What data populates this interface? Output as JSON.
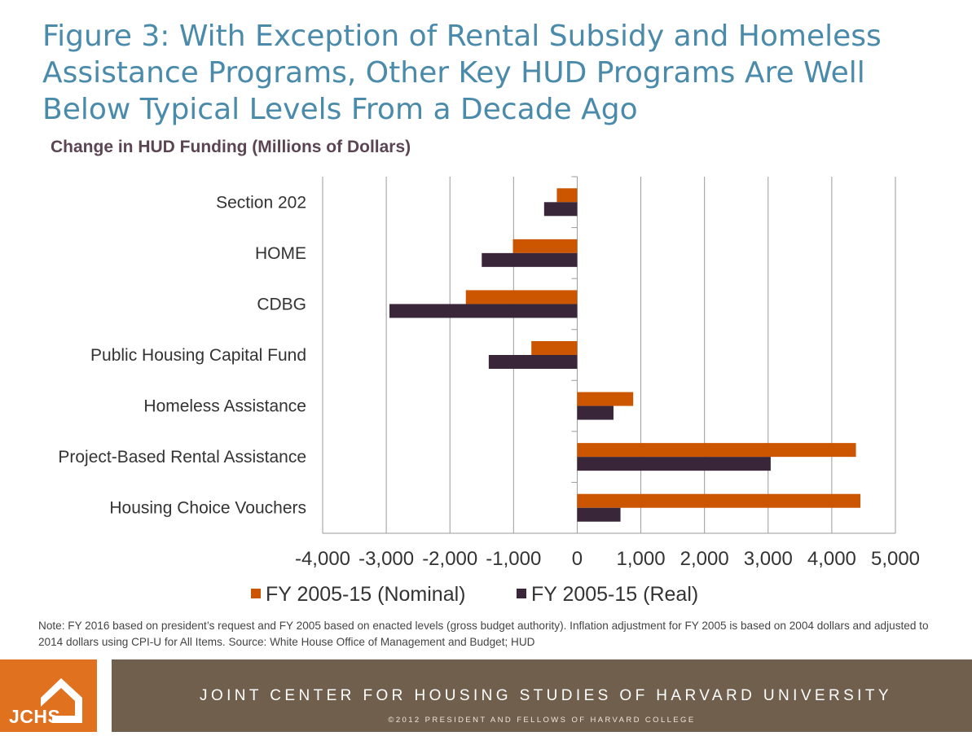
{
  "title": "Figure 3: With Exception of Rental Subsidy and Homeless Assistance Programs, Other Key HUD Programs Are Well Below Typical Levels From a Decade Ago",
  "subtitle": "Change in HUD Funding (Millions of Dollars)",
  "chart_data": {
    "type": "bar",
    "orientation": "horizontal",
    "categories": [
      "Section 202",
      "HOME",
      "CDBG",
      "Public Housing Capital Fund",
      "Homeless Assistance",
      "Project-Based Rental Assistance",
      "Housing Choice Vouchers"
    ],
    "series": [
      {
        "name": "FY 2005-15 (Nominal)",
        "color": "#cc5500",
        "values": [
          -320,
          -1010,
          -1750,
          -720,
          880,
          4380,
          4450
        ]
      },
      {
        "name": "FY 2005-15 (Real)",
        "color": "#3a2639",
        "values": [
          -520,
          -1500,
          -2950,
          -1390,
          570,
          3040,
          680
        ]
      }
    ],
    "xlim": [
      -4000,
      5000
    ],
    "xticks": [
      "-4,000",
      "-3,000",
      "-2,000",
      "-1,000",
      "0",
      "1,000",
      "2,000",
      "3,000",
      "4,000",
      "5,000"
    ],
    "grid": "vertical",
    "legend_position": "bottom"
  },
  "note": "Note: FY 2016 based on president’s request and FY 2005 based on enacted levels (gross budget authority). Inflation adjustment for FY 2005 is based on 2004 dollars and adjusted to 2014 dollars using CPI-U for All Items. Source: White House Office of Management and Budget; HUD",
  "footer": {
    "logo_text": "JCHS",
    "org": "JOINT CENTER FOR HOUSING STUDIES OF HARVARD UNIVERSITY",
    "copyright": "©2012 PRESIDENT AND FELLOWS OF HARVARD COLLEGE"
  },
  "colors": {
    "title": "#4a8aaa",
    "logo_bg": "#e0711f",
    "footer_bg": "#6f5f4c"
  }
}
